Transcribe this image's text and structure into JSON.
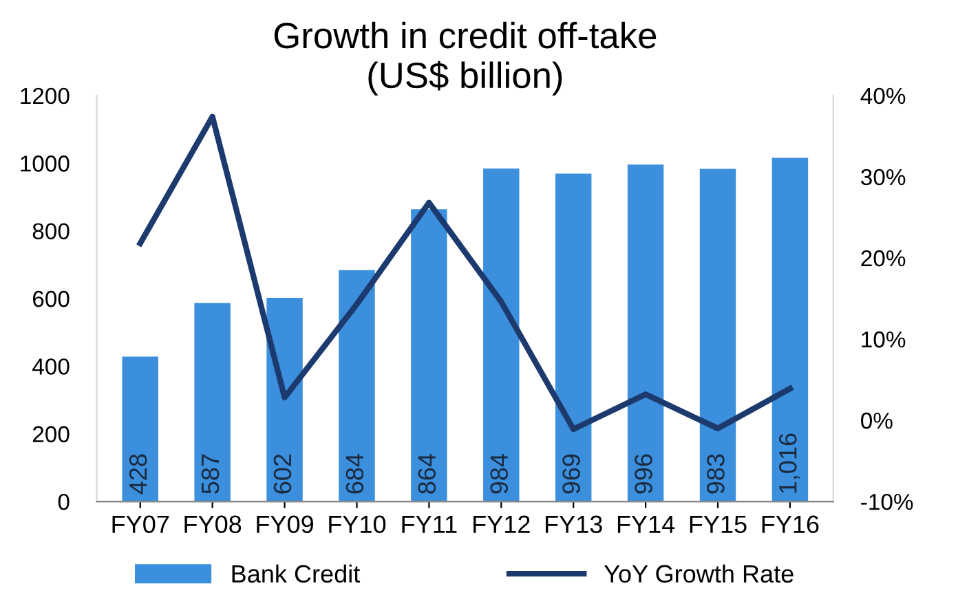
{
  "chart_data": {
    "type": "bar",
    "title": "Growth in credit off-take\n(US$ billion)",
    "categories": [
      "FY07",
      "FY08",
      "FY09",
      "FY10",
      "FY11",
      "FY12",
      "FY13",
      "FY14",
      "FY15",
      "FY16"
    ],
    "series": [
      {
        "name": "Bank Credit",
        "color": "#3b8fdc",
        "values": [
          428,
          587,
          602,
          684,
          864,
          984,
          969,
          996,
          983,
          1016
        ],
        "value_labels": [
          "428",
          "587",
          "602",
          "684",
          "864",
          "984",
          "969",
          "996",
          "983",
          "1,016"
        ]
      },
      {
        "name": "YoY Growth Rate",
        "type": "line",
        "axis": "y2",
        "color": "#1c3a6e",
        "values": [
          21.8,
          37.4,
          2.8,
          14.3,
          26.8,
          14.6,
          -1.1,
          3.2,
          -1.0,
          3.9
        ]
      }
    ],
    "ylim": [
      0,
      1200
    ],
    "yticks": [
      0,
      200,
      400,
      600,
      800,
      1000,
      1200
    ],
    "y2lim": [
      -10,
      40
    ],
    "y2ticks": [
      {
        "value": -10,
        "label": "-10%"
      },
      {
        "value": 0,
        "label": "0%"
      },
      {
        "value": 10,
        "label": "10%"
      },
      {
        "value": 20,
        "label": "20%"
      },
      {
        "value": 30,
        "label": "30%"
      },
      {
        "value": 40,
        "label": "40%"
      }
    ],
    "grid": false,
    "legend": "bottom",
    "marker": "none",
    "line_style": "solid"
  }
}
